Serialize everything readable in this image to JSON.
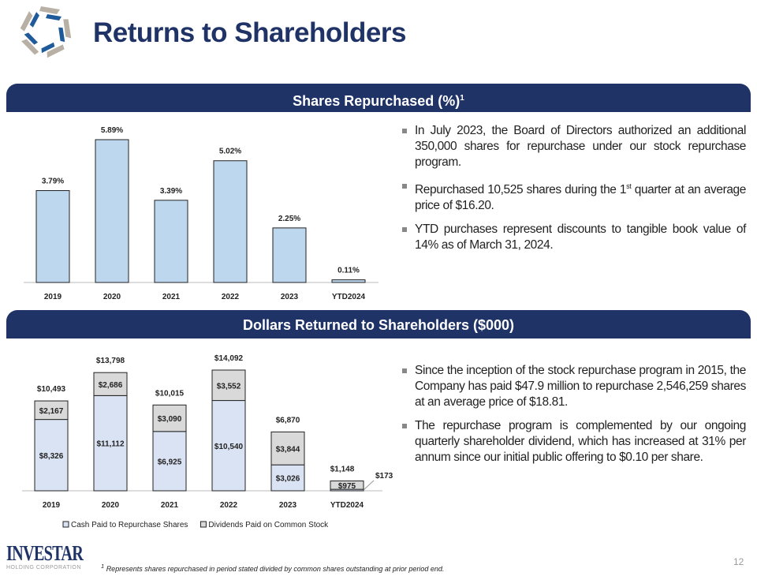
{
  "header": {
    "title": "Returns to Shareholders"
  },
  "section1": {
    "title": "Shares Repurchased (%)",
    "sup": "1",
    "bullets": [
      {
        "pre": "In July 2023, the Board of Directors authorized an additional 350,000 shares for repurchase under our stock repurchase program."
      },
      {
        "pre": "Repurchased 10,525 shares during the 1",
        "sup": "st",
        "post": " quarter at an average price of $16.20."
      },
      {
        "pre": "YTD purchases represent discounts to tangible book value of 14% as of March 31, 2024."
      }
    ]
  },
  "section2": {
    "title": "Dollars Returned to Shareholders ($000)",
    "bullets": [
      {
        "pre": "Since the inception of the stock repurchase program in 2015, the Company has paid $47.9 million to repurchase 2,546,259 shares at an average price of $18.81."
      },
      {
        "pre": "The repurchase program is complemented by our ongoing quarterly shareholder dividend, which has increased at 31% per annum since our initial public offering to $0.10 per share."
      }
    ]
  },
  "chart_data": [
    {
      "type": "bar",
      "categories": [
        "2019",
        "2020",
        "2021",
        "2022",
        "2023",
        "YTD2024"
      ],
      "values": [
        3.79,
        5.89,
        3.39,
        5.02,
        2.25,
        0.11
      ],
      "labels": [
        "3.79%",
        "5.89%",
        "3.39%",
        "5.02%",
        "2.25%",
        "0.11%"
      ],
      "color": "#bdd7ee",
      "grid": false
    },
    {
      "type": "bar",
      "stacked": true,
      "categories": [
        "2019",
        "2020",
        "2021",
        "2022",
        "2023",
        "YTD2024"
      ],
      "series": [
        {
          "name": "Cash Paid to Repurchase Shares",
          "values": [
            8326,
            11112,
            6925,
            10540,
            3026,
            173
          ],
          "labels": [
            "$8,326",
            "$11,112",
            "$6,925",
            "$10,540",
            "$3,026",
            "$173"
          ],
          "color": "#dae3f3"
        },
        {
          "name": "Dividends Paid on Common Stock",
          "values": [
            2167,
            2686,
            3090,
            3552,
            3844,
            975
          ],
          "labels": [
            "$2,167",
            "$2,686",
            "$3,090",
            "$3,552",
            "$3,844",
            "$975"
          ],
          "color": "#d9d9d9"
        }
      ],
      "totals": [
        "$10,493",
        "$13,798",
        "$10,015",
        "$14,092",
        "$6,870",
        "$1,148"
      ],
      "grid": false,
      "legend": "bottom"
    }
  ],
  "footer": {
    "note": "Represents shares repurchased in period stated divided by common shares outstanding at prior period end.",
    "note_sup": "1",
    "page": "12",
    "logo_text": "INVESTAR",
    "logo_sub": "HOLDING CORPORATION"
  }
}
